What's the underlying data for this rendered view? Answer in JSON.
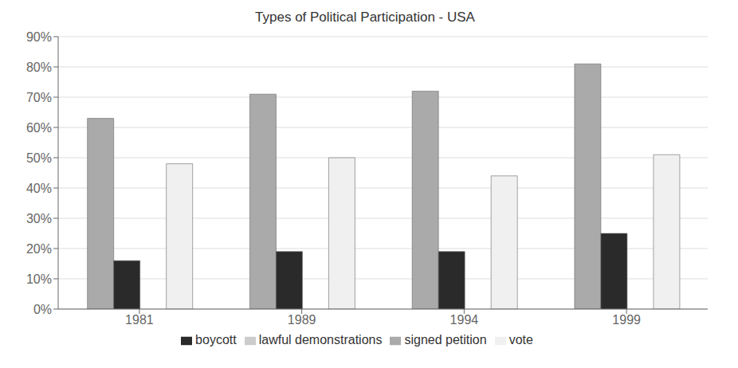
{
  "chart_data": {
    "type": "bar",
    "title": "Types of Political Participation - USA",
    "categories": [
      "1981",
      "1989",
      "1994",
      "1999"
    ],
    "series": [
      {
        "name": "signed petition",
        "color": "#aaaaaa",
        "values": [
          63,
          71,
          72,
          81
        ]
      },
      {
        "name": "boycott",
        "color": "#2a2a2a",
        "values": [
          16,
          19,
          19,
          25
        ]
      },
      {
        "name": "lawful demonstrations",
        "color": "#cccccc",
        "values": [
          0,
          0,
          0,
          0
        ]
      },
      {
        "name": "vote",
        "color": "#f0f0f0",
        "values": [
          48,
          50,
          44,
          51
        ]
      }
    ],
    "ylim": [
      0,
      90
    ],
    "yticks": [
      {
        "value": 0,
        "label": "0%"
      },
      {
        "value": 10,
        "label": "10%"
      },
      {
        "value": 20,
        "label": "20%"
      },
      {
        "value": 30,
        "label": "30%"
      },
      {
        "value": 40,
        "label": "40%"
      },
      {
        "value": 50,
        "label": "50%"
      },
      {
        "value": 60,
        "label": "60%"
      },
      {
        "value": 70,
        "label": "70%"
      },
      {
        "value": 80,
        "label": "80%"
      },
      {
        "value": 90,
        "label": "90%"
      }
    ],
    "grid": true,
    "legend": "bottom"
  }
}
